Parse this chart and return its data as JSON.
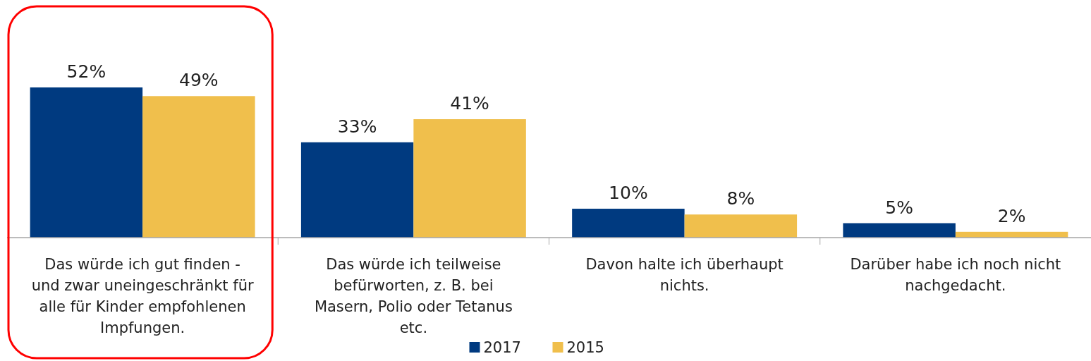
{
  "chart_data": {
    "type": "bar",
    "categories": [
      "Das würde ich gut finden - und zwar uneingeschränkt für alle für Kinder empfohlenen Impfungen.",
      "Das würde ich teilweise befürworten, z. B. bei Masern, Polio oder Tetanus etc.",
      "Davon halte ich überhaupt nichts.",
      "Darüber habe ich noch nicht nachgedacht."
    ],
    "series": [
      {
        "name": "2017",
        "color": "#003a80",
        "values": [
          52,
          33,
          10,
          5
        ],
        "value_labels": [
          "52%",
          "33%",
          "10%",
          "5%"
        ]
      },
      {
        "name": "2015",
        "color": "#f0bf4c",
        "values": [
          49,
          41,
          8,
          2
        ],
        "value_labels": [
          "49%",
          "41%",
          "8%",
          "2%"
        ]
      }
    ],
    "legend": "bottom"
  }
}
